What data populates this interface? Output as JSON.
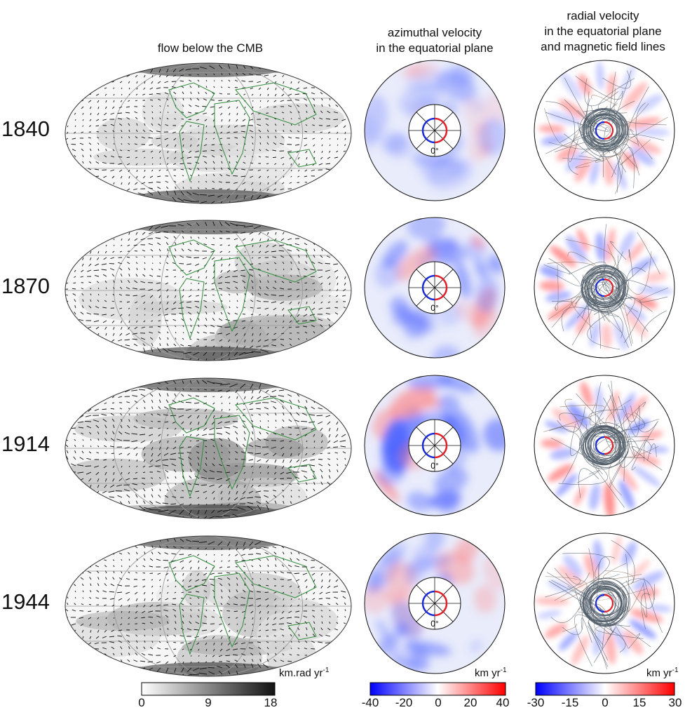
{
  "column_titles": {
    "flow": "flow below the CMB",
    "azimuthal": [
      "azimuthal velocity",
      "in the equatorial plane"
    ],
    "radial": [
      "radial velocity",
      "in the equatorial plane",
      "and magnetic field lines"
    ]
  },
  "rows": [
    {
      "year": "1840",
      "zero_label": "0°",
      "flow_intensity": 0.25,
      "az_pattern": "weak"
    },
    {
      "year": "1870",
      "zero_label": "0°",
      "flow_intensity": 0.45,
      "az_pattern": "medium"
    },
    {
      "year": "1914",
      "zero_label": "0°",
      "flow_intensity": 0.75,
      "az_pattern": "strong"
    },
    {
      "year": "1944",
      "zero_label": "0°",
      "flow_intensity": 0.4,
      "az_pattern": "medium"
    }
  ],
  "colorbars": {
    "flow": {
      "unit": "km.rad yr",
      "unit_exp": "-1",
      "ticks": [
        "0",
        "9",
        "18"
      ],
      "min": 0,
      "max": 18,
      "colors": [
        "#ffffff",
        "#111111"
      ]
    },
    "azimuthal": {
      "unit": "km yr",
      "unit_exp": "-1",
      "ticks": [
        "-40",
        "-20",
        "0",
        "20",
        "40"
      ],
      "min": -40,
      "max": 40,
      "colors": [
        "#0000ff",
        "#ffffff",
        "#ff0000"
      ]
    },
    "radial": {
      "unit": "km yr",
      "unit_exp": "-1",
      "ticks": [
        "-30",
        "-15",
        "0",
        "15",
        "30"
      ],
      "min": -30,
      "max": 30,
      "colors": [
        "#0000ff",
        "#ffffff",
        "#ff0000"
      ]
    }
  },
  "colors": {
    "blue": "#1a2bd6",
    "red": "#e0202a",
    "coast": "#2f8a3a",
    "field_lines": "#4d5a66"
  }
}
